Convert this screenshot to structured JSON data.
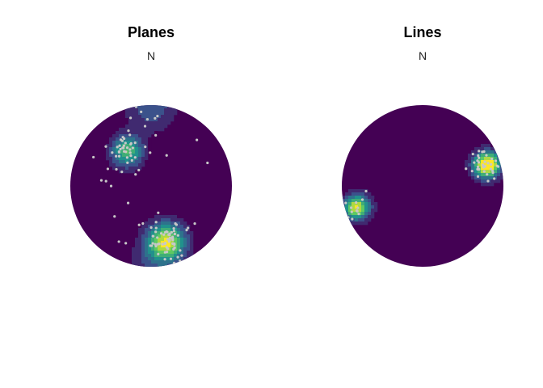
{
  "colors": {
    "background": "#440154",
    "points": "#c8c8c8",
    "viridis": [
      "#440154",
      "#3b528b",
      "#21918c",
      "#5ec962",
      "#fde725"
    ]
  },
  "chart_data": [
    {
      "type": "stereonet-density",
      "title": "Planes",
      "north_label": "N",
      "projection": "equal-area lower hemisphere",
      "colormap": "viridis",
      "clusters": [
        {
          "azimuth_deg": 325,
          "dist": 0.52,
          "spread": 0.14,
          "weight": 0.75,
          "points": 40
        },
        {
          "azimuth_deg": 165,
          "dist": 0.72,
          "spread": 0.17,
          "weight": 1.0,
          "points": 70
        },
        {
          "azimuth_deg": 0,
          "dist": 0.98,
          "spread": 0.22,
          "weight": 0.35,
          "points": 12
        }
      ],
      "scatter_points": 14
    },
    {
      "type": "stereonet-density",
      "title": "Lines",
      "north_label": "N",
      "projection": "equal-area lower hemisphere",
      "colormap": "viridis",
      "clusters": [
        {
          "azimuth_deg": 72,
          "dist": 0.82,
          "spread": 0.12,
          "weight": 1.0,
          "points": 35
        },
        {
          "azimuth_deg": 252,
          "dist": 0.9,
          "spread": 0.1,
          "weight": 0.55,
          "points": 14
        }
      ],
      "scatter_points": 0
    }
  ]
}
